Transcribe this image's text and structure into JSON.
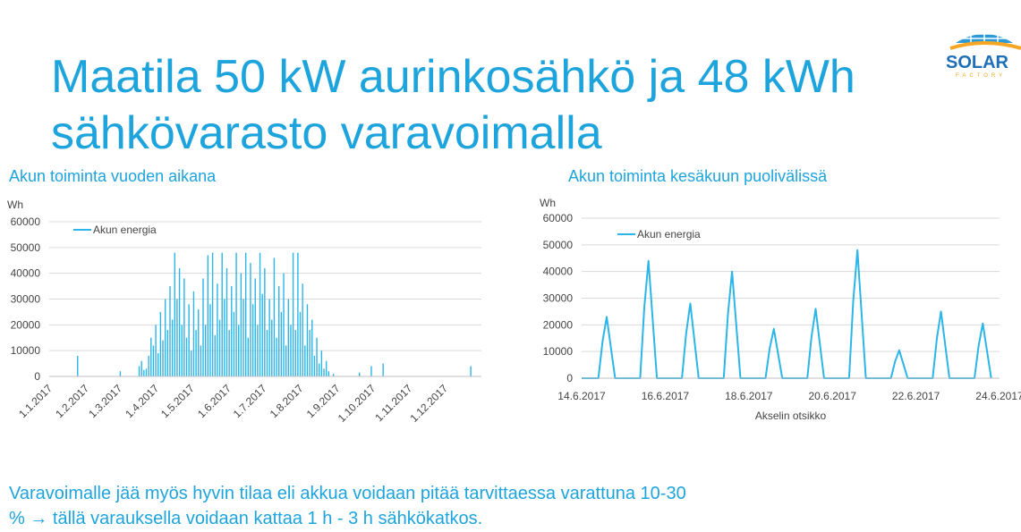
{
  "title_lines": [
    "Maatila 50 kW aurinkosähkö ja 48 kWh",
    "sähkövarasto varavoimalla"
  ],
  "logo": {
    "name": "SOLAR",
    "tagline": "FACTORY"
  },
  "body_lines": [
    "Varavoimalle jää myös hyvin tilaa eli akkua voidaan pitää tarvittaessa varattuna 10-30",
    "% → tällä varauksella voidaan kattaa 1 h - 3 h sähkökatkos."
  ],
  "chart_data": [
    {
      "type": "bar",
      "title": "Akun toiminta vuoden aikana",
      "y_label": "Wh",
      "xlim": [
        0,
        365
      ],
      "xticks": [
        {
          "value": 0,
          "label": "1.1.2017"
        },
        {
          "value": 31,
          "label": "1.2.2017"
        },
        {
          "value": 59,
          "label": "1.3.2017"
        },
        {
          "value": 90,
          "label": "1.4.2017"
        },
        {
          "value": 120,
          "label": "1.5.2017"
        },
        {
          "value": 151,
          "label": "1.6.2017"
        },
        {
          "value": 181,
          "label": "1.7.2017"
        },
        {
          "value": 212,
          "label": "1.8.2017"
        },
        {
          "value": 243,
          "label": "1.9.2017"
        },
        {
          "value": 273,
          "label": "1.10.2017"
        },
        {
          "value": 304,
          "label": "1.11.2017"
        },
        {
          "value": 334,
          "label": "1.12.2017"
        }
      ],
      "ylim": [
        0,
        60000
      ],
      "yticks": [
        0,
        10000,
        20000,
        30000,
        40000,
        50000,
        60000
      ],
      "grid": true,
      "legend": "top-left",
      "x": [
        24,
        60,
        76,
        78,
        80,
        82,
        84,
        86,
        88,
        90,
        92,
        94,
        96,
        98,
        100,
        102,
        104,
        106,
        108,
        110,
        112,
        114,
        116,
        118,
        120,
        122,
        124,
        126,
        128,
        130,
        132,
        134,
        136,
        138,
        140,
        142,
        144,
        146,
        148,
        150,
        152,
        154,
        156,
        158,
        160,
        162,
        164,
        166,
        168,
        170,
        172,
        174,
        176,
        178,
        180,
        182,
        184,
        186,
        188,
        190,
        192,
        194,
        196,
        198,
        200,
        202,
        204,
        206,
        208,
        210,
        212,
        214,
        216,
        218,
        220,
        222,
        224,
        226,
        228,
        230,
        232,
        234,
        236,
        240,
        262,
        272,
        282,
        356
      ],
      "series": [
        {
          "name": "Akun energia",
          "color": "#2bb5e8",
          "values": [
            8000,
            2000,
            4000,
            6000,
            2500,
            3000,
            8000,
            15000,
            12000,
            20000,
            9000,
            25000,
            14000,
            30000,
            18000,
            35000,
            22000,
            48000,
            30000,
            42000,
            20000,
            38000,
            15000,
            28000,
            10000,
            33000,
            18000,
            26000,
            12000,
            38000,
            20000,
            47000,
            28000,
            48000,
            16000,
            36000,
            22000,
            48000,
            30000,
            42000,
            18000,
            35000,
            25000,
            48000,
            20000,
            40000,
            30000,
            48000,
            15000,
            44000,
            28000,
            38000,
            20000,
            48000,
            32000,
            42000,
            18000,
            30000,
            22000,
            46000,
            15000,
            35000,
            25000,
            40000,
            12000,
            30000,
            20000,
            48000,
            18000,
            48000,
            25000,
            36000,
            12000,
            28000,
            18000,
            22000,
            8000,
            15000,
            5000,
            10000,
            3000,
            6000,
            2000,
            1000,
            1500,
            4000,
            5000,
            4000
          ]
        }
      ]
    },
    {
      "type": "line",
      "title": "Akun toiminta kesäkuun puolivälissä",
      "y_label": "Wh",
      "x_label": "Akselin otsikko",
      "xlim": [
        14,
        24
      ],
      "xticks": [
        {
          "value": 14,
          "label": "14.6.2017"
        },
        {
          "value": 16,
          "label": "16.6.2017"
        },
        {
          "value": 18,
          "label": "18.6.2017"
        },
        {
          "value": 20,
          "label": "20.6.2017"
        },
        {
          "value": 22,
          "label": "22.6.2017"
        },
        {
          "value": 24,
          "label": "24.6.2017"
        }
      ],
      "ylim": [
        0,
        60000
      ],
      "yticks": [
        0,
        10000,
        20000,
        30000,
        40000,
        50000,
        60000
      ],
      "grid": true,
      "legend": "top-left",
      "x": [
        14,
        14.4,
        14.5,
        14.6,
        14.7,
        14.8,
        15.4,
        15.5,
        15.6,
        15.7,
        15.8,
        16.4,
        16.5,
        16.6,
        16.7,
        16.8,
        17.4,
        17.5,
        17.6,
        17.7,
        17.8,
        18.4,
        18.5,
        18.6,
        18.7,
        18.8,
        19.4,
        19.5,
        19.6,
        19.7,
        19.8,
        20.4,
        20.5,
        20.6,
        20.7,
        20.8,
        21.4,
        21.5,
        21.6,
        21.7,
        21.8,
        22.4,
        22.5,
        22.6,
        22.7,
        22.8,
        23.4,
        23.5,
        23.6,
        23.7,
        23.8
      ],
      "series": [
        {
          "name": "Akun energia",
          "color": "#2bb5e8",
          "values": [
            0,
            0,
            13800,
            23000,
            11500,
            0,
            0,
            26400,
            44000,
            22000,
            0,
            0,
            16800,
            28000,
            14000,
            0,
            0,
            24000,
            40000,
            20000,
            0,
            0,
            11100,
            18500,
            9250,
            0,
            0,
            15600,
            26000,
            13000,
            0,
            0,
            28800,
            48000,
            24000,
            0,
            0,
            6300,
            10500,
            5250,
            0,
            0,
            15000,
            25000,
            12500,
            0,
            0,
            12300,
            20500,
            10250,
            0
          ]
        }
      ]
    }
  ]
}
